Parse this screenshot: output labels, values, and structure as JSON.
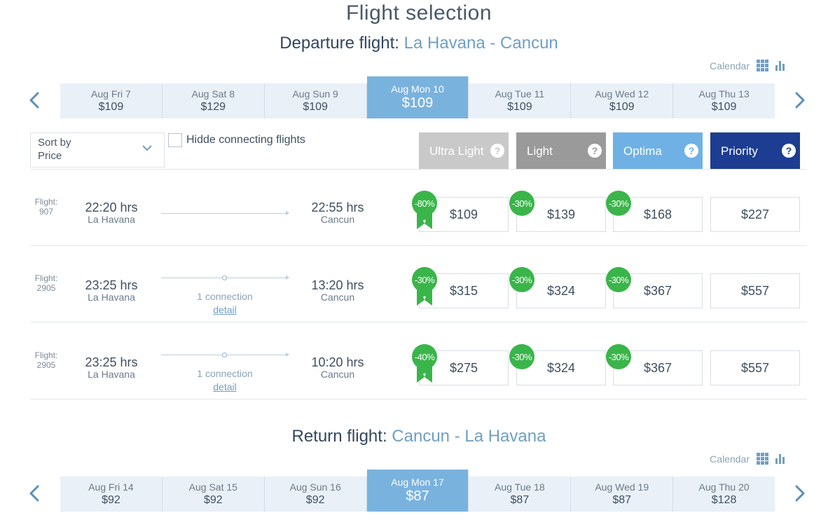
{
  "page_title": "Flight selection",
  "departure": {
    "label": "Departure flight:",
    "route": "La Havana - Cancun",
    "calendar_label": "Calendar",
    "dates": [
      {
        "label": "Aug  Fri 7",
        "price": "$109"
      },
      {
        "label": "Aug  Sat 8",
        "price": "$129"
      },
      {
        "label": "Aug  Sun 9",
        "price": "$109"
      },
      {
        "label": "Aug  Mon 10",
        "price": "$109",
        "active": true
      },
      {
        "label": "Aug  Tue 11",
        "price": "$109"
      },
      {
        "label": "Aug  Wed 12",
        "price": "$109"
      },
      {
        "label": "Aug  Thu 13",
        "price": "$109"
      }
    ]
  },
  "sort": {
    "line1": "Sort by",
    "line2": "Price"
  },
  "hide_connecting_label": "Hidde connecting flights",
  "fares": {
    "ultra_light": "Ultra Light",
    "light": "Light",
    "optima": "Optima",
    "priority": "Priority",
    "help": "?"
  },
  "flights": [
    {
      "flight_label": "Flight:",
      "flight_number": "907",
      "dep_time": "22:20 hrs",
      "dep_city": "La Havana",
      "arr_time": "22:55 hrs",
      "arr_city": "Cancun",
      "connection": "",
      "detail": "",
      "prices": [
        "$109",
        "$139",
        "$168",
        "$227"
      ],
      "discounts": [
        "-80%",
        "-30%",
        "-30%"
      ]
    },
    {
      "flight_label": "Flight:",
      "flight_number": "2905",
      "dep_time": "23:25 hrs",
      "dep_city": "La Havana",
      "arr_time": "13:20 hrs",
      "arr_city": "Cancun",
      "connection": "1 connection",
      "detail": "detail",
      "prices": [
        "$315",
        "$324",
        "$367",
        "$557"
      ],
      "discounts": [
        "-30%",
        "-30%",
        "-30%"
      ]
    },
    {
      "flight_label": "Flight:",
      "flight_number": "2905",
      "dep_time": "23:25 hrs",
      "dep_city": "La Havana",
      "arr_time": "10:20 hrs",
      "arr_city": "Cancun",
      "connection": "1 connection",
      "detail": "detail",
      "prices": [
        "$275",
        "$324",
        "$367",
        "$557"
      ],
      "discounts": [
        "-40%",
        "-30%",
        "-30%"
      ]
    }
  ],
  "return": {
    "label": "Return flight:",
    "route": "Cancun - La Havana",
    "calendar_label": "Calendar",
    "dates": [
      {
        "label": "Aug  Fri 14",
        "price": "$92"
      },
      {
        "label": "Aug  Sat 15",
        "price": "$92"
      },
      {
        "label": "Aug  Sun 16",
        "price": "$92"
      },
      {
        "label": "Aug  Mon 17",
        "price": "$87",
        "active": true
      },
      {
        "label": "Aug  Tue 18",
        "price": "$87"
      },
      {
        "label": "Aug  Wed 19",
        "price": "$87"
      },
      {
        "label": "Aug  Thu 20",
        "price": "$128"
      }
    ]
  },
  "colors": {
    "accent": "#7ab2de",
    "discount": "#3ab54a",
    "ultra_light": "#c9c9c9",
    "light": "#9a9a9a",
    "optima": "#6fb1e4",
    "priority": "#1c3d91"
  }
}
